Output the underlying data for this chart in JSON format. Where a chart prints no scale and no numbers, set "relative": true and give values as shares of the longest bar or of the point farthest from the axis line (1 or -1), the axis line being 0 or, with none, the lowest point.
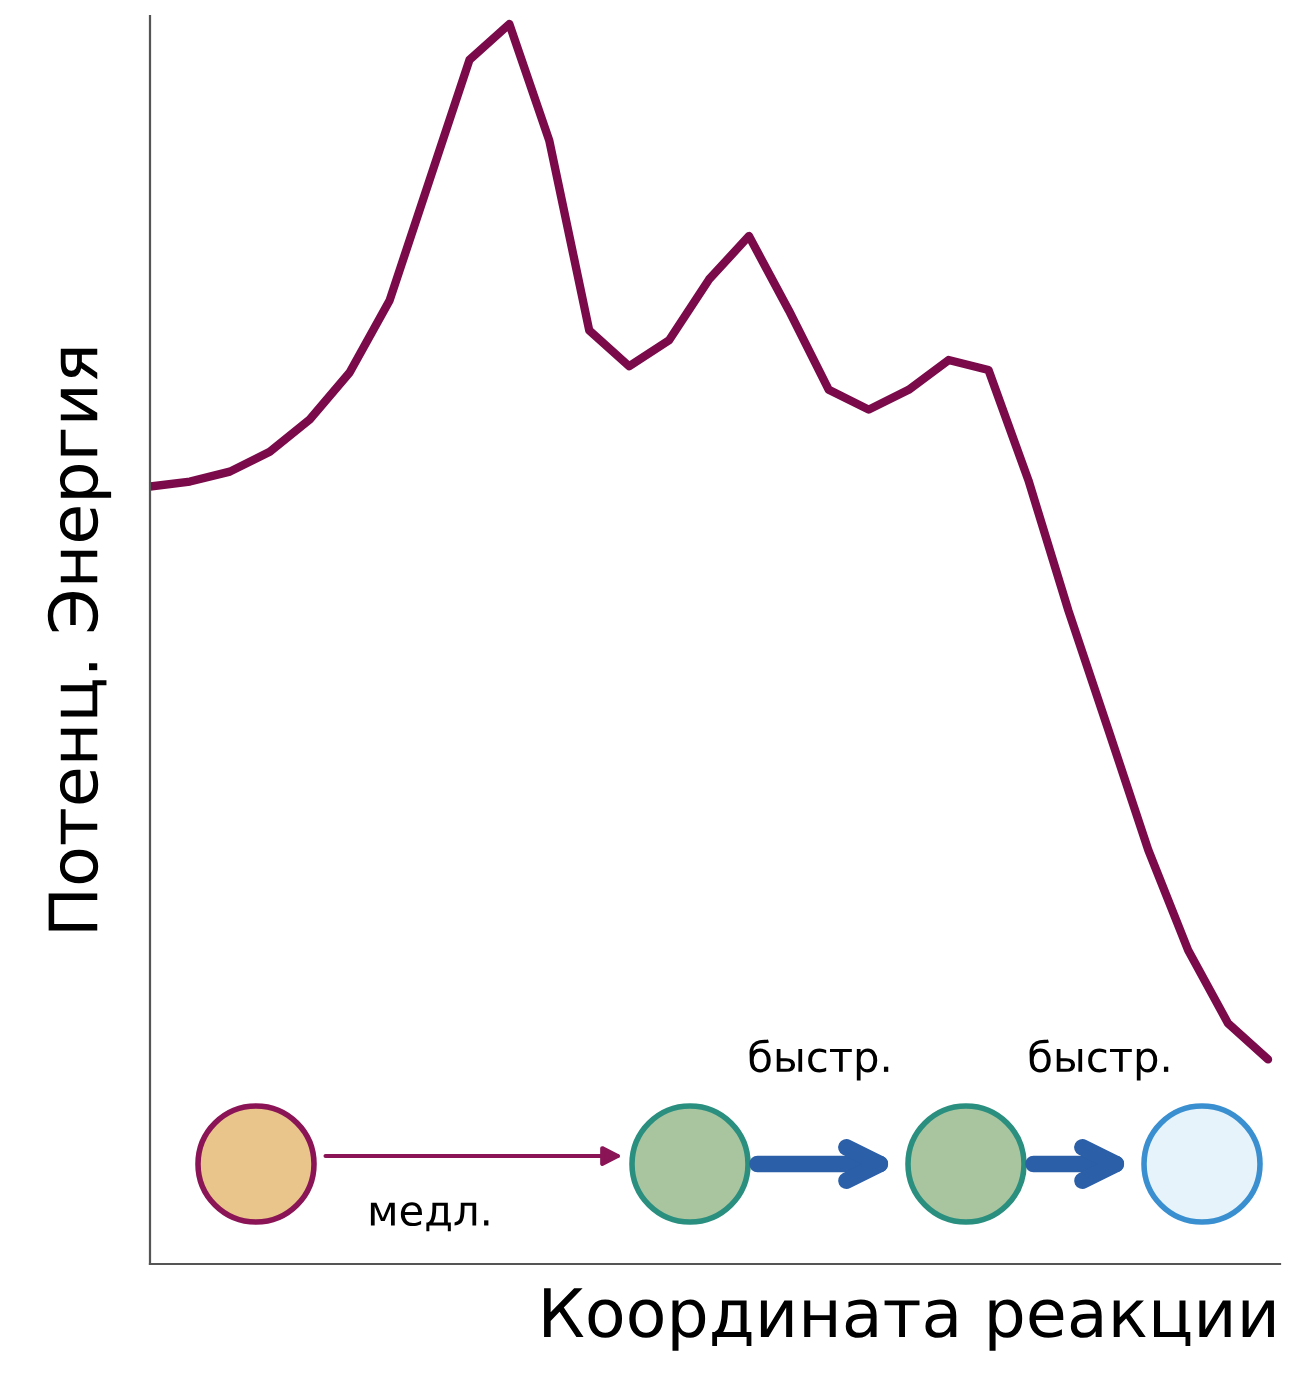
{
  "chart_data": {
    "type": "line",
    "relative": true,
    "xlabel": "Координата реакции",
    "ylabel": "Потенц. Энергия",
    "legend": false,
    "categories": [
      null,
      null,
      null,
      null,
      null,
      null,
      null,
      null,
      null,
      null,
      null,
      null,
      null,
      null,
      null,
      null,
      null,
      null,
      null,
      null,
      null,
      null,
      null,
      null,
      null,
      null,
      null,
      null,
      null
    ],
    "series": [
      {
        "color": "#7a0a4a",
        "values": [
          0.627,
          0.631,
          0.639,
          0.655,
          0.681,
          0.719,
          0.777,
          0.874,
          0.971,
          1.0,
          0.906,
          0.753,
          0.724,
          0.745,
          0.794,
          0.829,
          0.769,
          0.705,
          0.689,
          0.705,
          0.729,
          0.721,
          0.632,
          0.527,
          0.431,
          0.334,
          0.253,
          0.194,
          0.165
        ]
      }
    ],
    "annotations": [
      "медл.",
      "быстр.",
      "быстр."
    ]
  }
}
